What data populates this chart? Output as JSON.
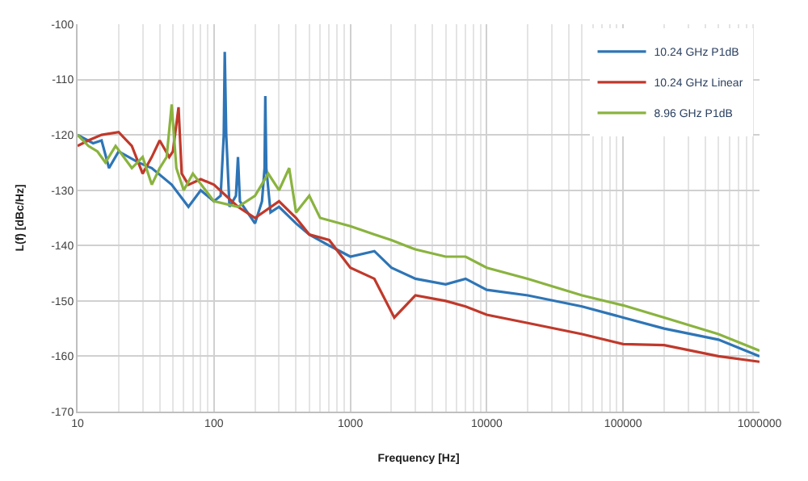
{
  "chart_data": {
    "type": "line",
    "xlabel": "Frequency [Hz]",
    "ylabel": "L(f) [dBc/Hz]",
    "log": "x",
    "grid": true,
    "legend": "top right",
    "line_style": "solid",
    "xlim": [
      10,
      1000000
    ],
    "xticks": [
      10,
      100,
      1000,
      10000,
      100000,
      1000000
    ],
    "ylim": [
      -170,
      -100
    ],
    "yticks": [
      -170,
      -160,
      -150,
      -140,
      -130,
      -120,
      -110,
      -100
    ],
    "series": [
      {
        "name": "10.24 GHz P1dB",
        "color": "#2e75b6",
        "x": [
          10,
          13,
          15,
          17,
          20,
          28,
          35,
          49,
          65,
          80,
          100,
          112,
          118,
          120,
          123,
          130,
          145,
          150,
          155,
          200,
          225,
          235,
          238,
          242,
          260,
          300,
          400,
          500,
          700,
          1000,
          1500,
          2000,
          3000,
          5000,
          7000,
          10000,
          20000,
          50000,
          100000,
          200000,
          500000,
          1000000
        ],
        "values": [
          -120,
          -121.5,
          -121,
          -126,
          -123,
          -125,
          -126,
          -129,
          -133,
          -130,
          -132,
          -131,
          -120,
          -105,
          -120,
          -133,
          -131,
          -124,
          -132,
          -136,
          -132,
          -126,
          -113,
          -126,
          -134,
          -133,
          -136,
          -138,
          -140,
          -142,
          -141,
          -144,
          -146,
          -147,
          -146,
          -148,
          -149,
          -151,
          -153,
          -155,
          -157,
          -160
        ]
      },
      {
        "name": "10.24 GHz Linear",
        "color": "#c0392b",
        "x": [
          10,
          12,
          15,
          20,
          25,
          30,
          35,
          40,
          47,
          50,
          55,
          58,
          65,
          80,
          100,
          150,
          200,
          300,
          400,
          500,
          700,
          1000,
          1500,
          2100,
          3000,
          5000,
          7000,
          10000,
          20000,
          50000,
          100000,
          200000,
          500000,
          1000000
        ],
        "values": [
          -122,
          -121,
          -120,
          -119.5,
          -122,
          -127,
          -124,
          -121,
          -124,
          -123,
          -115,
          -127,
          -129,
          -128,
          -129,
          -133,
          -135,
          -132,
          -135,
          -138,
          -139,
          -144,
          -146,
          -153,
          -149,
          -150,
          -151,
          -152.5,
          -154,
          -156,
          -157.8,
          -158,
          -160,
          -161
        ]
      },
      {
        "name": "8.96 GHz P1dB",
        "color": "#8ab33f",
        "x": [
          10,
          12,
          14,
          16,
          19,
          25,
          30,
          35,
          40,
          45,
          49,
          53,
          60,
          70,
          100,
          150,
          200,
          250,
          300,
          356,
          400,
          500,
          600,
          1000,
          1500,
          2000,
          3000,
          5000,
          7000,
          10000,
          20000,
          50000,
          100000,
          200000,
          500000,
          1000000
        ],
        "values": [
          -120,
          -122,
          -123,
          -125,
          -122,
          -126,
          -124,
          -129,
          -126,
          -124,
          -114.5,
          -126,
          -130,
          -127,
          -132,
          -133,
          -131,
          -127,
          -130,
          -126,
          -134,
          -131,
          -135,
          -136.5,
          -138,
          -139,
          -140.7,
          -142,
          -142,
          -144,
          -146,
          -149,
          -150.8,
          -153,
          -156,
          -159
        ]
      }
    ]
  }
}
